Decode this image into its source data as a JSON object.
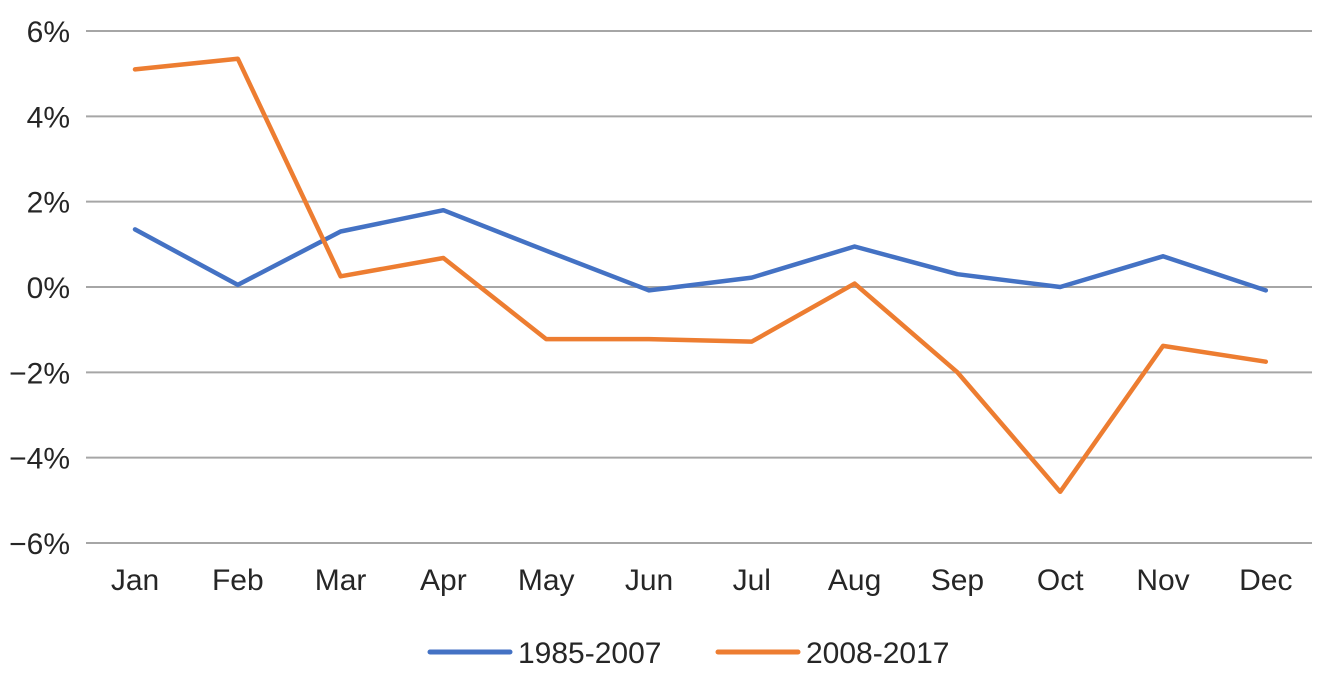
{
  "chart_data": {
    "type": "line",
    "title": "",
    "xlabel": "",
    "ylabel": "",
    "categories": [
      "Jan",
      "Feb",
      "Mar",
      "Apr",
      "May",
      "Jun",
      "Jul",
      "Aug",
      "Sep",
      "Oct",
      "Nov",
      "Dec"
    ],
    "series": [
      {
        "name": "1985-2007",
        "color": "#4472C4",
        "values": [
          1.35,
          0.05,
          1.3,
          1.8,
          0.85,
          -0.08,
          0.22,
          0.95,
          0.3,
          0.0,
          0.72,
          -0.08
        ]
      },
      {
        "name": "2008-2017",
        "color": "#ED7D31",
        "values": [
          5.1,
          5.35,
          0.25,
          0.68,
          -1.22,
          -1.22,
          -1.28,
          0.08,
          -2.0,
          -4.8,
          -1.38,
          -1.75
        ]
      }
    ],
    "ylim": [
      -6,
      6
    ],
    "yticks": [
      6,
      4,
      2,
      0,
      -2,
      -4,
      -6
    ],
    "ytick_labels": [
      "6%",
      "4%",
      "2%",
      "0%",
      "−2%",
      "−4%",
      "−6%"
    ],
    "grid": true,
    "legend": "bottom",
    "gridline_color": "#A6A6A6"
  }
}
